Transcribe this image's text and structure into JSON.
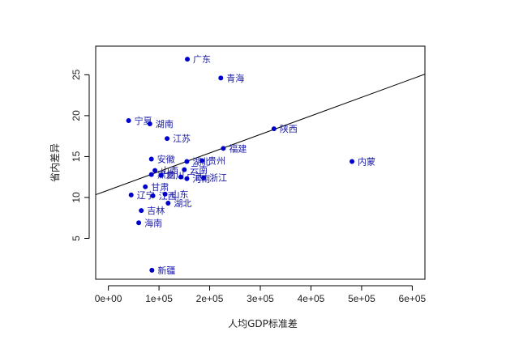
{
  "chart_data": {
    "type": "scatter",
    "title": "",
    "xlabel": "人均GDP标准差",
    "ylabel": "省内差异",
    "xlim": [
      -25000,
      625000
    ],
    "ylim": [
      0,
      28.5
    ],
    "xticks": [
      0,
      100000,
      200000,
      300000,
      400000,
      500000,
      600000
    ],
    "xtick_labels": [
      "0e+00",
      "1e+05",
      "2e+05",
      "3e+05",
      "4e+05",
      "5e+05",
      "6e+05"
    ],
    "yticks": [
      5,
      10,
      15,
      20,
      25
    ],
    "ytick_labels": [
      "5",
      "10",
      "15",
      "20",
      "25"
    ],
    "grid": false,
    "legend": "none",
    "point_color": "#0000cc",
    "label_color": "#1a1aa8",
    "regression_line": {
      "intercept": 10.9,
      "slope": 2.268e-05
    },
    "points": [
      {
        "label": "广东",
        "x": 156000,
        "y": 26.9
      },
      {
        "label": "青海",
        "x": 222000,
        "y": 24.6
      },
      {
        "label": "宁夏",
        "x": 40000,
        "y": 19.4
      },
      {
        "label": "湖南",
        "x": 82000,
        "y": 19.0
      },
      {
        "label": "陕西",
        "x": 327000,
        "y": 18.4
      },
      {
        "label": "江苏",
        "x": 116000,
        "y": 17.2
      },
      {
        "label": "福建",
        "x": 227000,
        "y": 16.0
      },
      {
        "label": "安徽",
        "x": 85000,
        "y": 14.7
      },
      {
        "label": "内蒙",
        "x": 481000,
        "y": 14.4
      },
      {
        "label": "湖北",
        "x": 155000,
        "y": 14.4
      },
      {
        "label": "贵州",
        "x": 185000,
        "y": 14.5
      },
      {
        "label": "山西",
        "x": 92000,
        "y": 13.3
      },
      {
        "label": "云南",
        "x": 150000,
        "y": 13.4
      },
      {
        "label": "黑龙",
        "x": 85000,
        "y": 12.8
      },
      {
        "label": "四川",
        "x": 104000,
        "y": 12.7
      },
      {
        "label": "广西",
        "x": 143000,
        "y": 12.5
      },
      {
        "label": "河南",
        "x": 155000,
        "y": 12.3
      },
      {
        "label": "浙江",
        "x": 188000,
        "y": 12.4
      },
      {
        "label": "甘肃",
        "x": 73000,
        "y": 11.3
      },
      {
        "label": "辽宁",
        "x": 45000,
        "y": 10.3
      },
      {
        "label": "江西",
        "x": 88000,
        "y": 10.2
      },
      {
        "label": "山东",
        "x": 112000,
        "y": 10.4
      },
      {
        "label": "湖北",
        "x": 118000,
        "y": 9.3
      },
      {
        "label": "吉林",
        "x": 65000,
        "y": 8.4
      },
      {
        "label": "海南",
        "x": 60000,
        "y": 6.9
      },
      {
        "label": "新疆",
        "x": 86000,
        "y": 1.1
      }
    ]
  }
}
